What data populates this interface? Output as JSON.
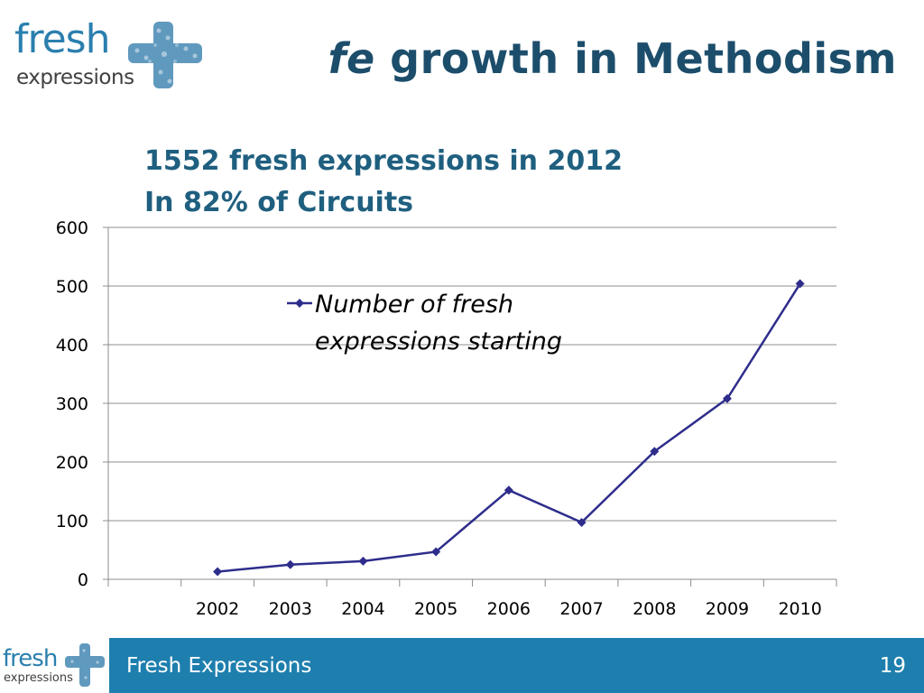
{
  "logo": {
    "line1": "fresh",
    "line2": "expressions"
  },
  "header": {
    "title_em": "fe",
    "title_rest": " growth in Methodism"
  },
  "subtitle": {
    "line1": "1552 fresh expressions in 2012",
    "line2": "In 82% of Circuits"
  },
  "chart_data": {
    "type": "line",
    "categories": [
      "2002",
      "2003",
      "2004",
      "2005",
      "2006",
      "2007",
      "2008",
      "2009",
      "2010"
    ],
    "series": [
      {
        "name": "Number of fresh expressions starting",
        "values": [
          13,
          25,
          31,
          47,
          152,
          97,
          218,
          308,
          504
        ]
      }
    ],
    "legend_lines": [
      "Number of fresh",
      "expressions starting"
    ],
    "ylim": [
      0,
      600
    ],
    "yticks": [
      0,
      100,
      200,
      300,
      400,
      500,
      600
    ],
    "grid": true,
    "legend_position": "top-center",
    "line_color": "#2e2d8c"
  },
  "footer": {
    "label": "Fresh Expressions",
    "page": "19",
    "logo_line1": "fresh",
    "logo_line2": "expressions"
  }
}
